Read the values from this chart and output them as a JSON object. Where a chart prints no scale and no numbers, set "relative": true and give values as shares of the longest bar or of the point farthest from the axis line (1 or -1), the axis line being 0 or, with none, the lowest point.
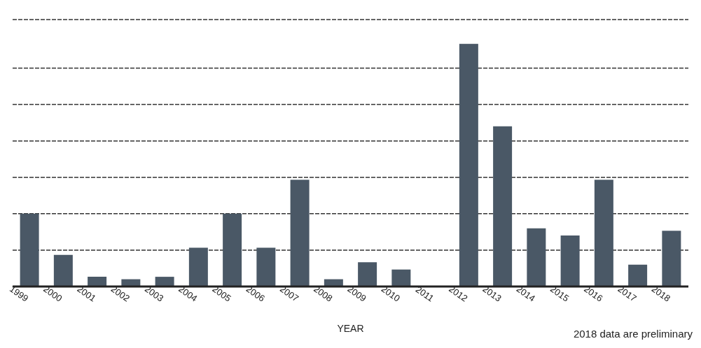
{
  "chart_data": {
    "type": "bar",
    "relative": true,
    "xlabel": "YEAR",
    "categories": [
      "1999",
      "2000",
      "2001",
      "2002",
      "2003",
      "2004",
      "2005",
      "2006",
      "2007",
      "2008",
      "2009",
      "2010",
      "2011",
      "2012",
      "2013",
      "2014",
      "2015",
      "2016",
      "2017",
      "2018"
    ],
    "values": [
      0.3,
      0.13,
      0.04,
      0.03,
      0.04,
      0.16,
      0.3,
      0.16,
      0.44,
      0.03,
      0.1,
      0.07,
      0,
      1,
      0.66,
      0.24,
      0.21,
      0.44,
      0.09,
      0.23
    ],
    "color": "#4a5866",
    "grid": "y",
    "annotations": [
      "2018 data are preliminary"
    ]
  }
}
